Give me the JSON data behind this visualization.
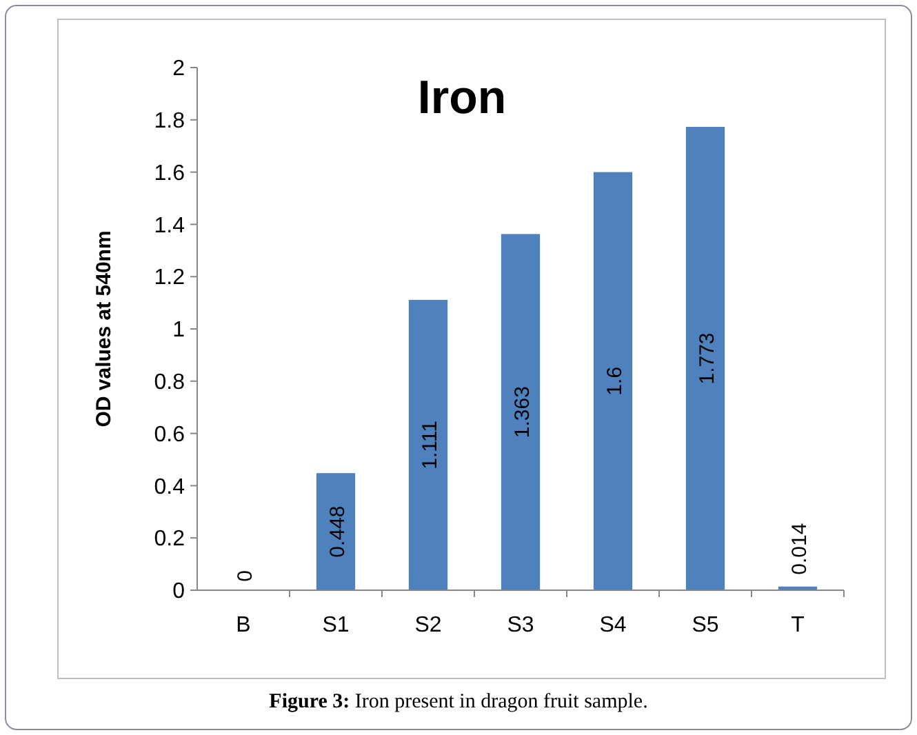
{
  "chart_data": {
    "type": "bar",
    "title": "Iron",
    "ylabel": "OD values at 540nm",
    "categories": [
      "B",
      "S1",
      "S2",
      "S3",
      "S4",
      "S5",
      "T"
    ],
    "values": [
      0,
      0.448,
      1.111,
      1.363,
      1.6,
      1.773,
      0.014
    ],
    "color": "#4f81bd",
    "ylim": [
      0,
      2
    ],
    "yticks": [
      0,
      0.2,
      0.4,
      0.6,
      0.8,
      1,
      1.2,
      1.4,
      1.6,
      1.8,
      2
    ],
    "data_labels": true,
    "grid": false,
    "annotations": [
      "Figure 3: Iron present in dragon fruit sample."
    ]
  }
}
